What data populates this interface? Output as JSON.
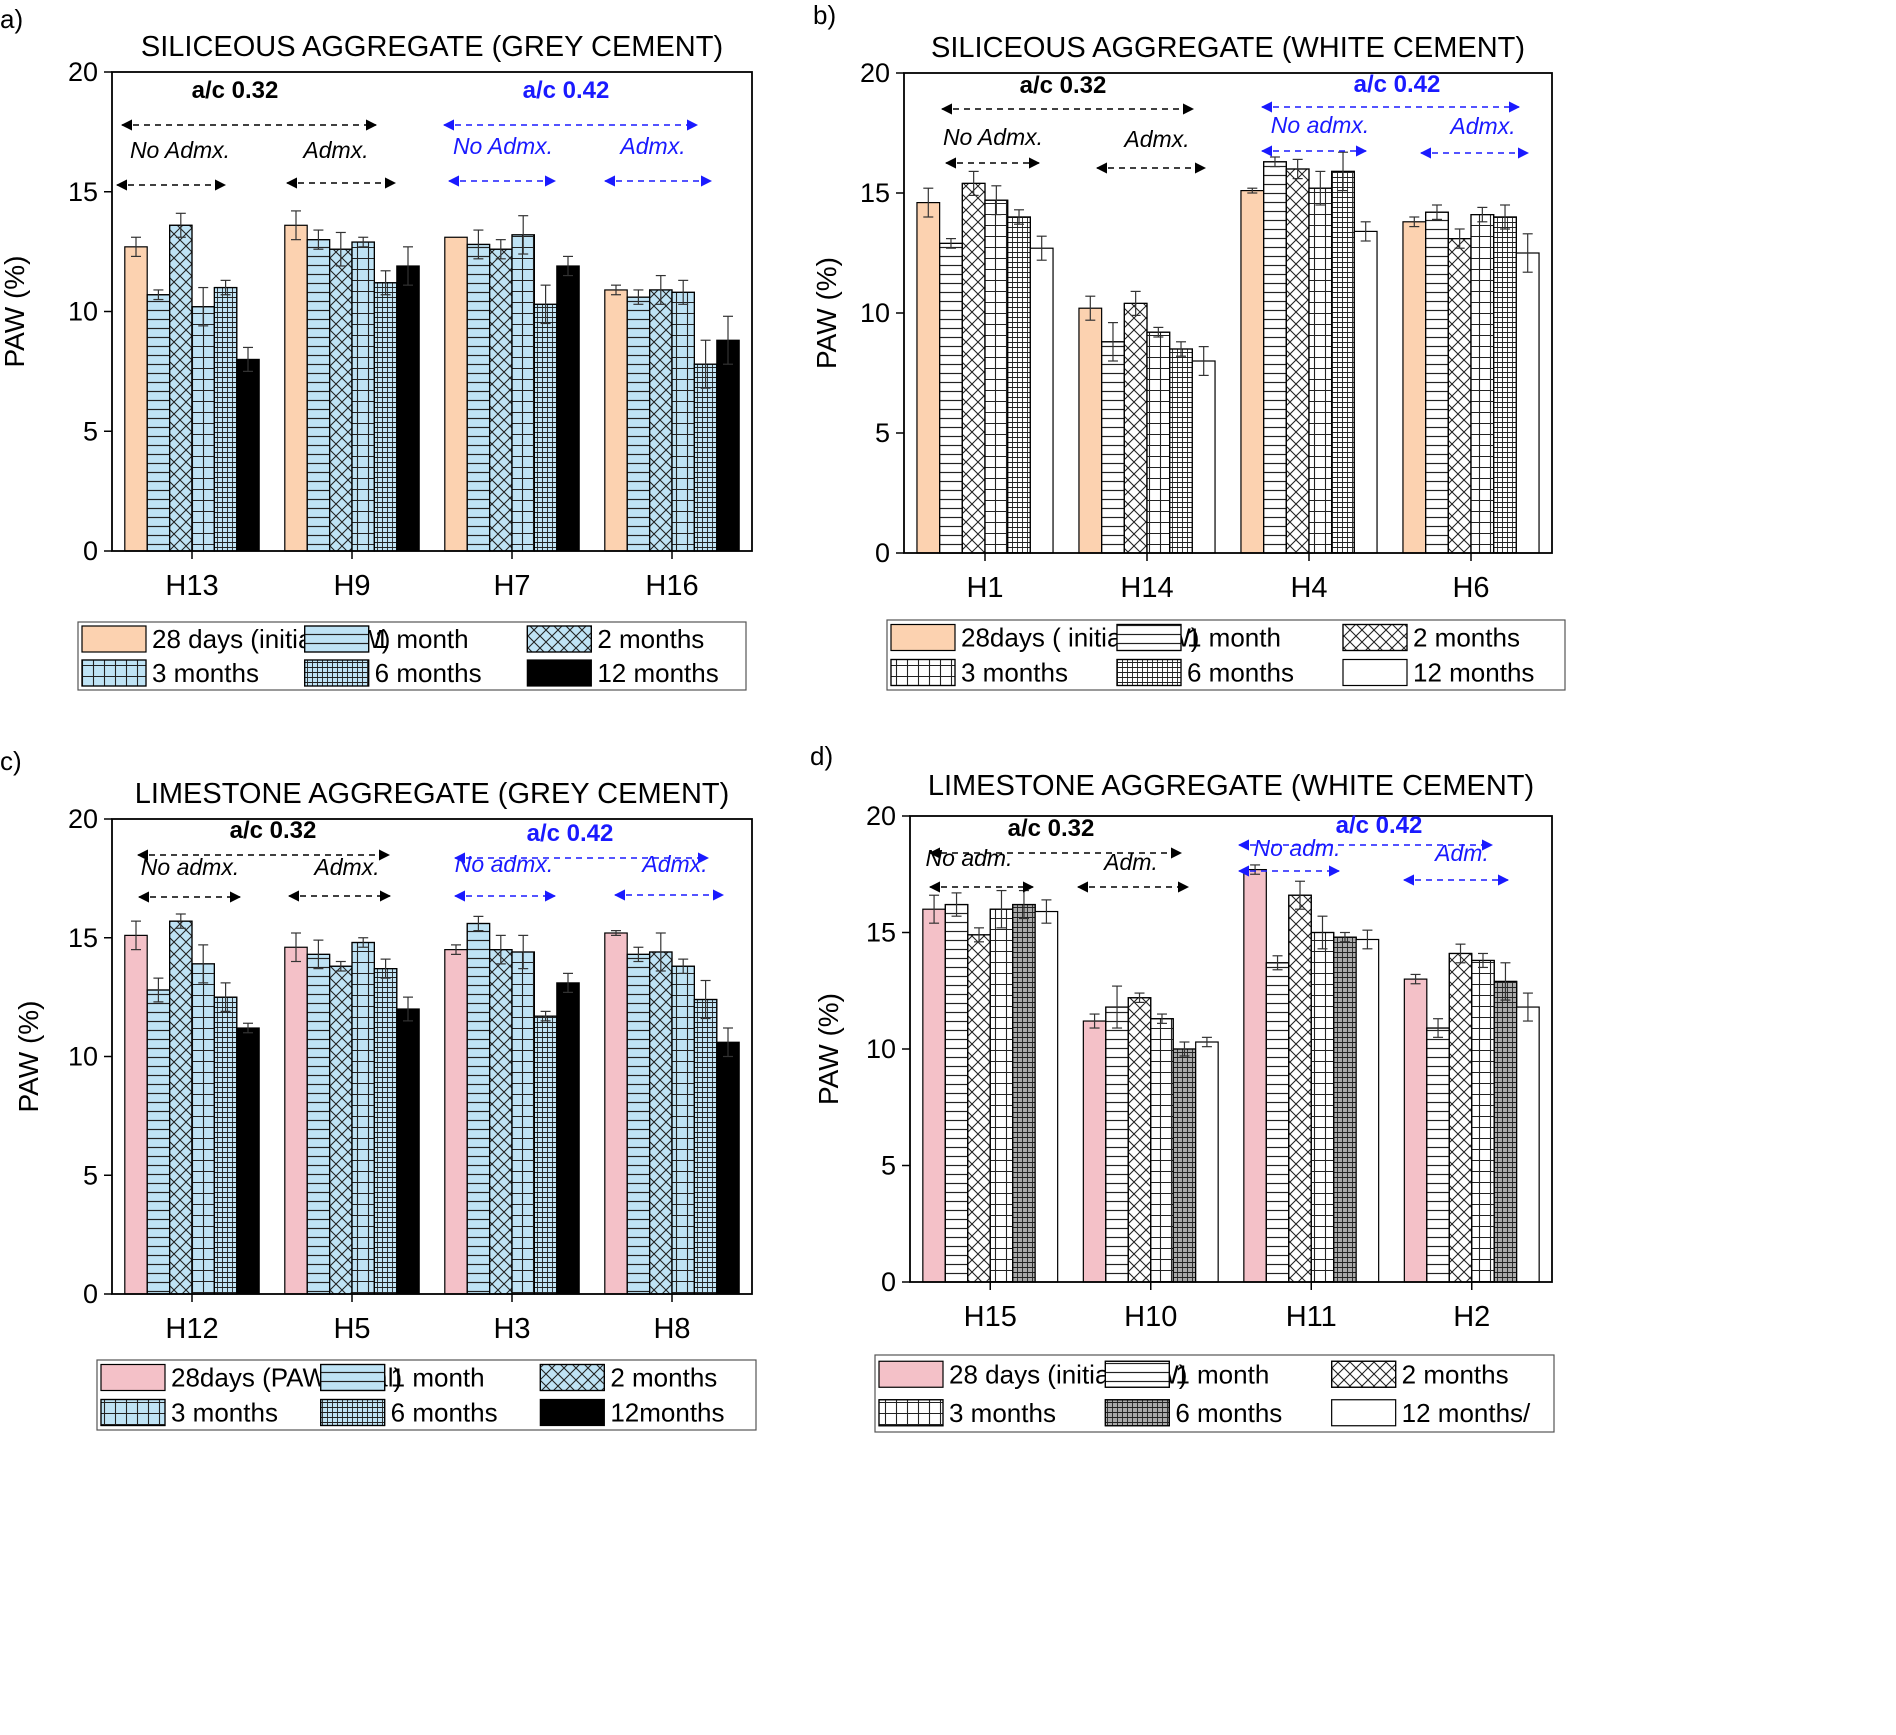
{
  "patterns": [
    "solid",
    "hlines",
    "xhatch",
    "grid",
    "fine-grid",
    "black"
  ],
  "chart_data": [
    {
      "type": "bar",
      "panel_label": "a)",
      "title": "SILICEOUS AGGREGATE (GREY CEMENT)",
      "xlabel": "",
      "ylabel": "PAW (%)",
      "ylim": [
        0,
        20
      ],
      "yticks": [
        "0",
        "5",
        "10",
        "15",
        "20"
      ],
      "categories": [
        "H13",
        "H9",
        "H7",
        "H16"
      ],
      "colors": [
        "#fcd2b0",
        "#bfe3f5",
        "#bfe3f5",
        "#bfe3f5",
        "#bfe3f5",
        "#000000"
      ],
      "series": [
        {
          "name": "28 days (initial PAW)",
          "values": [
            12.7,
            13.6,
            13.1,
            10.9
          ],
          "errors": [
            0.4,
            0.6,
            0.0,
            0.2
          ]
        },
        {
          "name": "1 month",
          "values": [
            10.7,
            13.0,
            12.8,
            10.6
          ],
          "errors": [
            0.2,
            0.4,
            0.6,
            0.3
          ]
        },
        {
          "name": "2 months",
          "values": [
            13.6,
            12.6,
            12.6,
            10.9
          ],
          "errors": [
            0.5,
            0.7,
            0.4,
            0.6
          ]
        },
        {
          "name": "3 months",
          "values": [
            10.2,
            12.9,
            13.2,
            10.8
          ],
          "errors": [
            0.8,
            0.2,
            0.8,
            0.5
          ]
        },
        {
          "name": "6 months",
          "values": [
            11.0,
            11.2,
            10.3,
            7.8
          ],
          "errors": [
            0.3,
            0.5,
            0.8,
            1.0
          ]
        },
        {
          "name": "12 months",
          "values": [
            8.0,
            11.9,
            11.9,
            8.8
          ],
          "errors": [
            0.5,
            0.8,
            0.4,
            1.0
          ]
        }
      ],
      "annotations": [
        {
          "text": "a/c 0.32",
          "kind": "group",
          "color": "black"
        },
        {
          "text": "No Admx.",
          "kind": "sub",
          "color": "black"
        },
        {
          "text": "Admx.",
          "kind": "sub",
          "color": "black"
        },
        {
          "text": "a/c 0.42",
          "kind": "group",
          "color": "blue"
        },
        {
          "text": "No Admx.",
          "kind": "sub",
          "color": "blue"
        },
        {
          "text": "Admx.",
          "kind": "sub",
          "color": "blue"
        }
      ],
      "legend": {
        "position": "bottom",
        "columns": 3
      }
    },
    {
      "type": "bar",
      "panel_label": "b)",
      "title": "SILICEOUS AGGREGATE (WHITE CEMENT)",
      "xlabel": "",
      "ylabel": "PAW (%)",
      "ylim": [
        0,
        20
      ],
      "yticks": [
        "0",
        "5",
        "10",
        "15",
        "20"
      ],
      "categories": [
        "H1",
        "H14",
        "H4",
        "H6"
      ],
      "colors": [
        "#fcd2b0",
        "#ffffff",
        "#ffffff",
        "#ffffff",
        "#ffffff",
        "#ffffff"
      ],
      "series": [
        {
          "name": "28days ( initial PAW)",
          "values": [
            14.6,
            10.2,
            15.1,
            13.8
          ],
          "errors": [
            0.6,
            0.5,
            0.1,
            0.2
          ]
        },
        {
          "name": "1 month",
          "values": [
            12.9,
            8.8,
            16.3,
            14.2
          ],
          "errors": [
            0.2,
            0.8,
            0.2,
            0.3
          ]
        },
        {
          "name": "2 months",
          "values": [
            15.4,
            10.4,
            16.0,
            13.1
          ],
          "errors": [
            0.5,
            0.5,
            0.4,
            0.4
          ]
        },
        {
          "name": "3 months",
          "values": [
            14.7,
            9.2,
            15.2,
            14.1
          ],
          "errors": [
            0.6,
            0.2,
            0.7,
            0.3
          ]
        },
        {
          "name": "6 months",
          "values": [
            14.0,
            8.5,
            15.9,
            14.0
          ],
          "errors": [
            0.3,
            0.3,
            0.8,
            0.5
          ]
        },
        {
          "name": "12 months",
          "values": [
            12.7,
            8.0,
            13.4,
            12.5
          ],
          "errors": [
            0.5,
            0.6,
            0.4,
            0.8
          ]
        }
      ],
      "annotations": [
        {
          "text": "a/c 0.32",
          "kind": "group",
          "color": "black"
        },
        {
          "text": "No Admx.",
          "kind": "sub",
          "color": "black"
        },
        {
          "text": "Admx.",
          "kind": "sub",
          "color": "black"
        },
        {
          "text": "a/c 0.42",
          "kind": "group",
          "color": "blue"
        },
        {
          "text": "No admx.",
          "kind": "sub",
          "color": "blue"
        },
        {
          "text": "Admx.",
          "kind": "sub",
          "color": "blue"
        }
      ],
      "legend": {
        "position": "bottom",
        "columns": 3
      }
    },
    {
      "type": "bar",
      "panel_label": "c)",
      "title": "LIMESTONE AGGREGATE (GREY CEMENT)",
      "xlabel": "",
      "ylabel": "PAW (%)",
      "ylim": [
        0,
        20
      ],
      "yticks": [
        "0",
        "5",
        "10",
        "15",
        "20"
      ],
      "categories": [
        "H12",
        "H5",
        "H3",
        "H8"
      ],
      "colors": [
        "#f4c1c8",
        "#bfe3f5",
        "#bfe3f5",
        "#bfe3f5",
        "#bfe3f5",
        "#000000"
      ],
      "series": [
        {
          "name": "28days  (PAW initial)",
          "values": [
            15.1,
            14.6,
            14.5,
            15.2
          ],
          "errors": [
            0.6,
            0.6,
            0.2,
            0.1
          ]
        },
        {
          "name": "1 month",
          "values": [
            12.8,
            14.3,
            15.6,
            14.3
          ],
          "errors": [
            0.5,
            0.6,
            0.3,
            0.3
          ]
        },
        {
          "name": "2 months",
          "values": [
            15.7,
            13.8,
            14.5,
            14.4
          ],
          "errors": [
            0.3,
            0.2,
            0.6,
            0.8
          ]
        },
        {
          "name": "3 months",
          "values": [
            13.9,
            14.8,
            14.4,
            13.8
          ],
          "errors": [
            0.8,
            0.2,
            0.7,
            0.3
          ]
        },
        {
          "name": "6  months",
          "values": [
            12.5,
            13.7,
            11.7,
            12.4
          ],
          "errors": [
            0.6,
            0.4,
            0.2,
            0.8
          ]
        },
        {
          "name": "12months",
          "values": [
            11.2,
            12.0,
            13.1,
            10.6
          ],
          "errors": [
            0.2,
            0.5,
            0.4,
            0.6
          ]
        }
      ],
      "annotations": [
        {
          "text": "a/c 0.32",
          "kind": "group",
          "color": "black"
        },
        {
          "text": "No admx.",
          "kind": "sub",
          "color": "black"
        },
        {
          "text": "Admx.",
          "kind": "sub",
          "color": "black"
        },
        {
          "text": "a/c 0.42",
          "kind": "group",
          "color": "blue"
        },
        {
          "text": "No admx.",
          "kind": "sub",
          "color": "blue"
        },
        {
          "text": "Admx.",
          "kind": "sub",
          "color": "blue"
        }
      ],
      "legend": {
        "position": "bottom",
        "columns": 3
      }
    },
    {
      "type": "bar",
      "panel_label": "d)",
      "title": "LIMESTONE AGGREGATE (WHITE CEMENT)",
      "xlabel": "",
      "ylabel": "PAW (%)",
      "ylim": [
        0,
        20
      ],
      "yticks": [
        "0",
        "5",
        "10",
        "15",
        "20"
      ],
      "categories": [
        "H15",
        "H10",
        "H11",
        "H2"
      ],
      "colors": [
        "#f4c1c8",
        "#ffffff",
        "#ffffff",
        "#ffffff",
        "#aaaaaa",
        "#ffffff"
      ],
      "series": [
        {
          "name": "28 days (initial PAW)",
          "values": [
            16.0,
            11.2,
            17.7,
            13.0
          ],
          "errors": [
            0.6,
            0.3,
            0.2,
            0.2
          ]
        },
        {
          "name": "1 month",
          "values": [
            16.2,
            11.8,
            13.7,
            10.9
          ],
          "errors": [
            0.5,
            0.9,
            0.3,
            0.4
          ]
        },
        {
          "name": "2 months",
          "values": [
            14.9,
            12.2,
            16.6,
            14.1
          ],
          "errors": [
            0.3,
            0.2,
            0.6,
            0.4
          ]
        },
        {
          "name": "3 months",
          "values": [
            16.0,
            11.3,
            15.0,
            13.8
          ],
          "errors": [
            0.8,
            0.2,
            0.7,
            0.3
          ]
        },
        {
          "name": "6 months",
          "values": [
            16.2,
            10.0,
            14.8,
            12.9
          ],
          "errors": [
            0.6,
            0.3,
            0.2,
            0.8
          ]
        },
        {
          "name": "12 months/",
          "values": [
            15.9,
            10.3,
            14.7,
            11.8
          ],
          "errors": [
            0.5,
            0.2,
            0.4,
            0.6
          ]
        }
      ],
      "annotations": [
        {
          "text": "a/c 0.32",
          "kind": "group",
          "color": "black"
        },
        {
          "text": "No adm.",
          "kind": "sub",
          "color": "black"
        },
        {
          "text": "Adm.",
          "kind": "sub",
          "color": "black"
        },
        {
          "text": "a/c 0.42",
          "kind": "group",
          "color": "blue"
        },
        {
          "text": "No adm.",
          "kind": "sub",
          "color": "blue"
        },
        {
          "text": "Adm.",
          "kind": "sub",
          "color": "blue"
        }
      ],
      "legend": {
        "position": "bottom",
        "columns": 3
      }
    }
  ]
}
